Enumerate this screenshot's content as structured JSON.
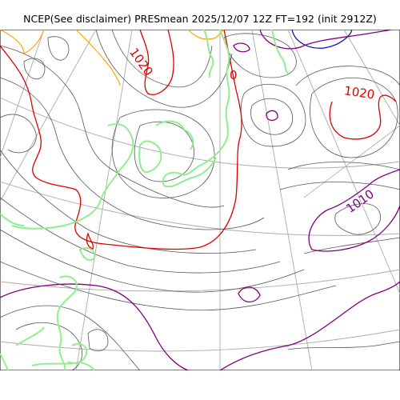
{
  "title": "NCEP(See disclaimer) PRESmean 2025/12/07 12Z FT=192 (init 2912Z)",
  "contour_labels": [
    {
      "text": "1020",
      "color": "#e00000"
    },
    {
      "text": "1020",
      "color": "#e00000"
    },
    {
      "text": "1010",
      "color": "#800080"
    },
    {
      "text": "0",
      "color": "#e00000"
    }
  ],
  "colors": {
    "coastline": "#90ee90",
    "isobar_1020": "#e00000",
    "isobar_1010": "#800080",
    "isobar_1030": "#ffa500",
    "isobar_high": "#0000cc",
    "isobar_minor": "#555555",
    "graticule": "#aaaaaa"
  }
}
